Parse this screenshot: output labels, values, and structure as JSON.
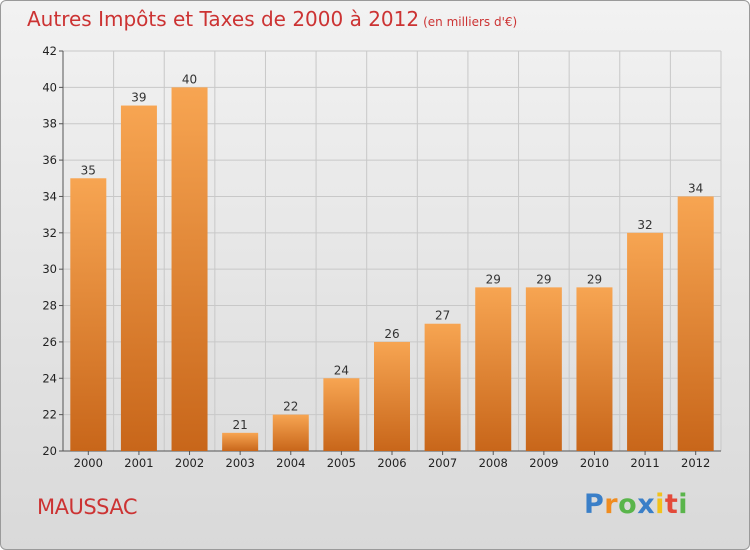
{
  "title": "Autres Impôts et Taxes de 2000 à 2012",
  "subtitle": "(en milliers d'€)",
  "commune": "MAUSSAC",
  "logo": {
    "letters": [
      {
        "ch": "P",
        "color": "#3a7fc8"
      },
      {
        "ch": "r",
        "color": "#f08c1f"
      },
      {
        "ch": "o",
        "color": "#5ab54b"
      },
      {
        "ch": "x",
        "color": "#3a7fc8"
      },
      {
        "ch": "i",
        "color": "#f2c21b"
      },
      {
        "ch": "t",
        "color": "#e34a3a"
      },
      {
        "ch": "i",
        "color": "#5ab54b"
      }
    ]
  },
  "chart_data": {
    "type": "bar",
    "title": "Autres Impôts et Taxes de 2000 à 2012",
    "subtitle": "(en milliers d'€)",
    "xlabel": "",
    "ylabel": "",
    "categories": [
      "2000",
      "2001",
      "2002",
      "2003",
      "2004",
      "2005",
      "2006",
      "2007",
      "2008",
      "2009",
      "2010",
      "2011",
      "2012"
    ],
    "values": [
      35,
      39,
      40,
      21,
      22,
      24,
      26,
      27,
      29,
      29,
      29,
      32,
      34
    ],
    "ylim": [
      20,
      42
    ],
    "yticks": [
      20,
      22,
      24,
      26,
      28,
      30,
      32,
      34,
      36,
      38,
      40,
      42
    ],
    "grid": true,
    "legend": "none",
    "colors": {
      "bar_top": "#f7a552",
      "bar_bottom": "#c8661a",
      "grid": "#c8c8c8",
      "title": "#cc3333"
    }
  }
}
